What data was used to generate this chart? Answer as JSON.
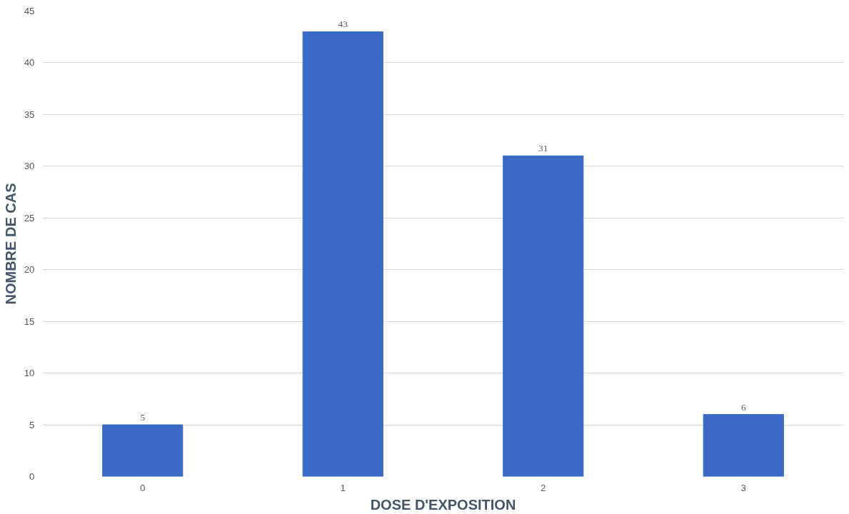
{
  "chart_data": {
    "type": "bar",
    "xlabel": "DOSE D'EXPOSITION",
    "ylabel": "NOMBRE DE CAS",
    "categories": [
      "0",
      "1",
      "2",
      "3"
    ],
    "values": [
      5,
      43,
      31,
      6
    ],
    "color": "#3b6ac6",
    "ylim": [
      0,
      45
    ],
    "yticks": [
      0,
      5,
      10,
      15,
      20,
      25,
      30,
      35,
      40,
      45
    ],
    "grid": "y",
    "data_labels": true
  }
}
